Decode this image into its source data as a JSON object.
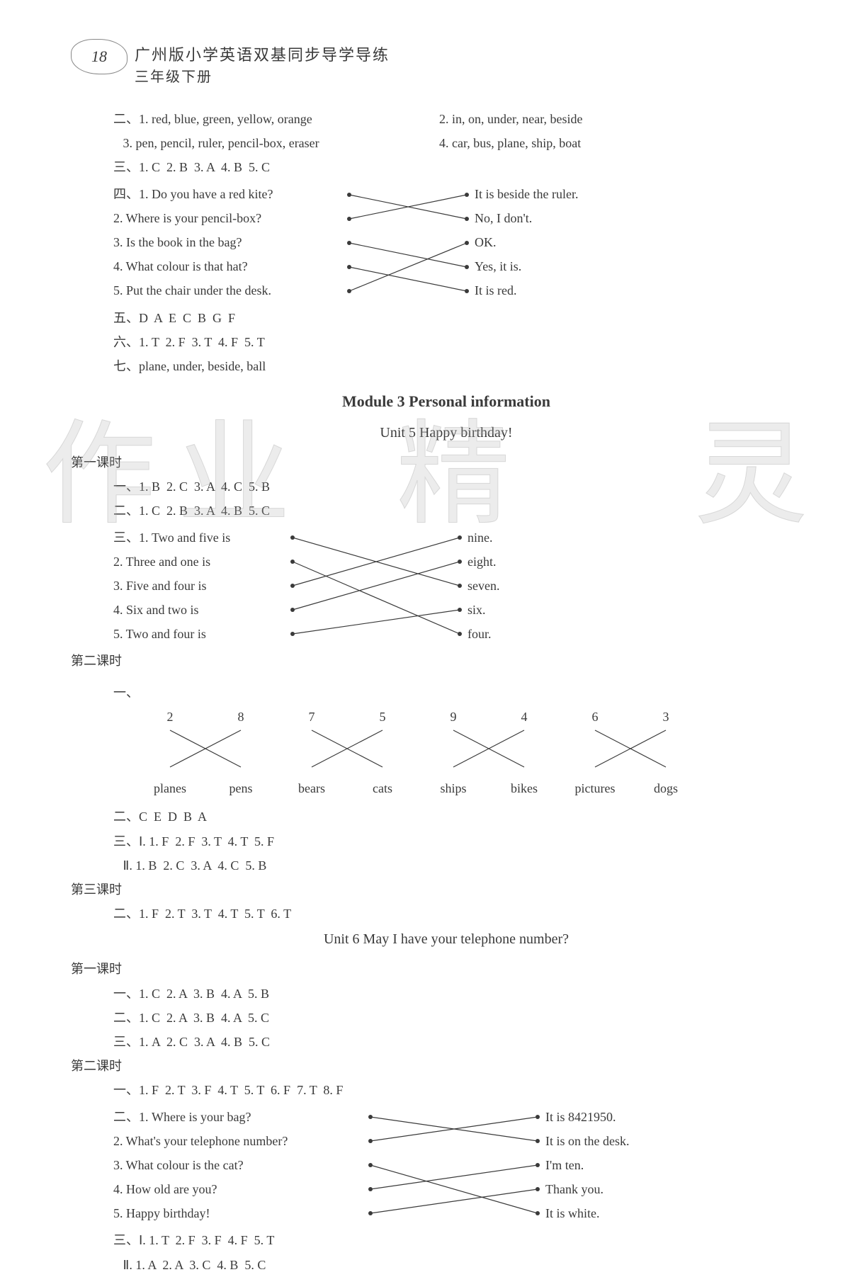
{
  "page_number": "18",
  "header_title": "广州版小学英语双基同步导学导练",
  "header_sub": "三年级下册",
  "sec2": {
    "l1a": "二、1. red, blue, green, yellow, orange",
    "l1b": "2. in, on, under, near, beside",
    "l2a": "   3. pen, pencil, ruler, pencil-box, eraser",
    "l2b": "4. car, bus, plane, ship, boat"
  },
  "sec3": "三、1. C  2. B  3. A  4. B  5. C",
  "sec4_label": "四、",
  "match4": {
    "left": [
      "1. Do you have a red kite?",
      "2. Where is your pencil-box?",
      "3. Is the book in the bag?",
      "4. What colour is that hat?",
      "5. Put the chair under the desk."
    ],
    "right": [
      "It is beside the ruler.",
      "No, I don't.",
      "OK.",
      "Yes, it is.",
      "It is red."
    ],
    "edges": [
      [
        0,
        1
      ],
      [
        1,
        0
      ],
      [
        2,
        3
      ],
      [
        3,
        4
      ],
      [
        4,
        2
      ]
    ]
  },
  "sec5": "五、D  A  E  C  B  G  F",
  "sec6": "六、1. T  2. F  3. T  4. F  5. T",
  "sec7": "七、plane, under, beside, ball",
  "module_title": "Module 3    Personal information",
  "unit5_title": "Unit 5    Happy birthday!",
  "lesson1": "第一课时",
  "u5l1_a": "一、1. B  2. C  3. A  4. C  5. B",
  "u5l1_b": "二、1. C  2. B  3. A  4. B  5. C",
  "u5l1_c_label": "三、",
  "match_math": {
    "left": [
      "1. Two and five is",
      "2. Three and one is",
      "3. Five and four is",
      "4. Six and two is",
      "5. Two and four is"
    ],
    "right": [
      "nine.",
      "eight.",
      "seven.",
      "six.",
      "four."
    ],
    "edges": [
      [
        0,
        2
      ],
      [
        1,
        4
      ],
      [
        2,
        0
      ],
      [
        3,
        1
      ],
      [
        4,
        3
      ]
    ]
  },
  "lesson2": "第二课时",
  "num_match": {
    "top": [
      "2",
      "8",
      "7",
      "5",
      "9",
      "4",
      "6",
      "3"
    ],
    "bot": [
      "planes",
      "pens",
      "bears",
      "cats",
      "ships",
      "bikes",
      "pictures",
      "dogs"
    ],
    "edges": [
      [
        0,
        1
      ],
      [
        1,
        0
      ],
      [
        2,
        3
      ],
      [
        3,
        2
      ],
      [
        4,
        5
      ],
      [
        5,
        4
      ],
      [
        6,
        7
      ],
      [
        7,
        6
      ]
    ]
  },
  "u5l2_b": "二、C  E  D  B  A",
  "u5l2_c1": "三、Ⅰ. 1. F  2. F  3. T  4. T  5. F",
  "u5l2_c2": "   Ⅱ. 1. B  2. C  3. A  4. C  5. B",
  "lesson3": "第三课时",
  "u5l3": "二、1. F  2. T  3. T  4. T  5. T  6. T",
  "unit6_title": "Unit 6    May I have your telephone number?",
  "u6_lesson1": "第一课时",
  "u6l1_a": "一、1. C  2. A  3. B  4. A  5. B",
  "u6l1_b": "二、1. C  2. A  3. B  4. A  5. C",
  "u6l1_c": "三、1. A  2. C  3. A  4. B  5. C",
  "u6_lesson2": "第二课时",
  "u6l2_a": "一、1. F  2. T  3. F  4. T  5. T  6. F  7. T  8. F",
  "u6l2_b_label": "二、",
  "match_u6": {
    "left": [
      "1. Where is your bag?",
      "2. What's your telephone number?",
      "3. What colour is the cat?",
      "4. How old are you?",
      "5. Happy birthday!"
    ],
    "right": [
      "It is 8421950.",
      "It is on the desk.",
      "I'm ten.",
      "Thank you.",
      "It is white."
    ],
    "edges": [
      [
        0,
        1
      ],
      [
        1,
        0
      ],
      [
        2,
        4
      ],
      [
        3,
        2
      ],
      [
        4,
        3
      ]
    ]
  },
  "u6l2_c1": "三、Ⅰ. 1. T  2. F  3. F  4. F  5. T",
  "u6l2_c2": "   Ⅱ. 1. A  2. A  3. C  4. B  5. C",
  "wm": [
    "作",
    "业",
    "精",
    "灵"
  ]
}
